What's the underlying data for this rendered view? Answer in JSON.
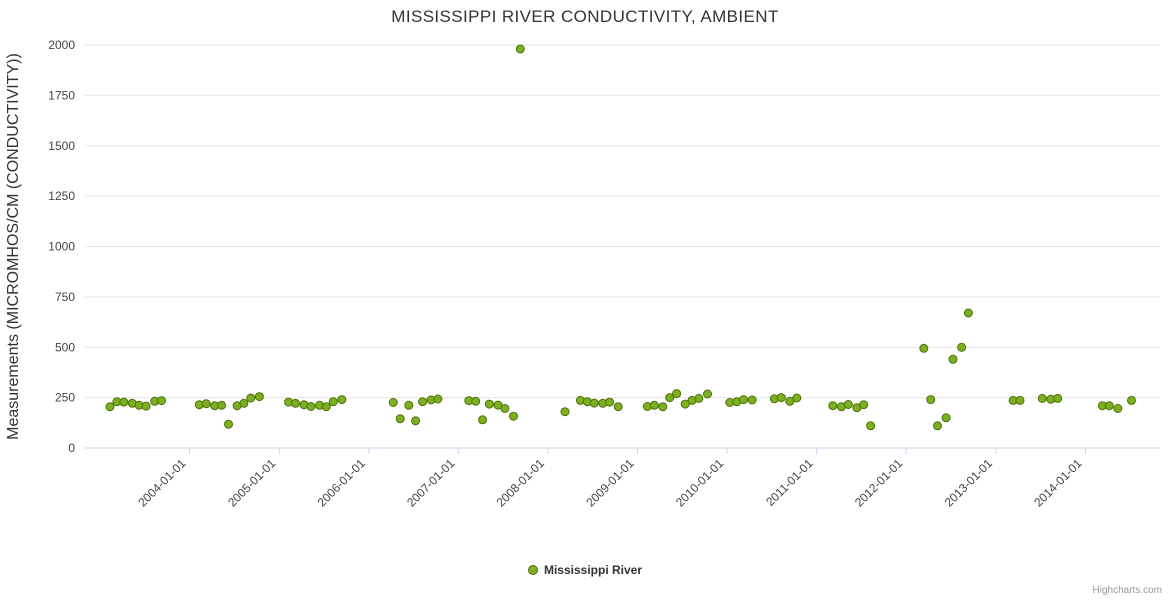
{
  "page": {
    "credits": "Highcharts.com"
  },
  "chart_data": {
    "type": "scatter",
    "title": "MISSISSIPPI RIVER CONDUCTIVITY, AMBIENT",
    "xlabel": "",
    "ylabel": "Measurements (MICROMHOS/CM (CONDUCTIVITY))",
    "ylim": [
      0,
      2000
    ],
    "yticks": [
      0,
      250,
      500,
      750,
      1000,
      1250,
      1500,
      1750,
      2000
    ],
    "xticks": [
      "2004-01-01",
      "2005-01-01",
      "2006-01-01",
      "2007-01-01",
      "2008-01-01",
      "2009-01-01",
      "2010-01-01",
      "2011-01-01",
      "2012-01-01",
      "2013-01-01",
      "2014-01-01"
    ],
    "x_range": [
      "2002-11-01",
      "2014-11-01"
    ],
    "grid": true,
    "legend": {
      "position": "bottom"
    },
    "marker_color": "#7cb020",
    "marker_stroke": "#4e7009",
    "grid_color": "#e6e6e6",
    "axis_line_color": "#ccd6eb",
    "series": [
      {
        "name": "Mississippi River",
        "points": [
          [
            "2003-02-11",
            205
          ],
          [
            "2003-03-11",
            230
          ],
          [
            "2003-04-08",
            228
          ],
          [
            "2003-05-13",
            222
          ],
          [
            "2003-06-10",
            212
          ],
          [
            "2003-07-08",
            208
          ],
          [
            "2003-08-12",
            232
          ],
          [
            "2003-09-09",
            235
          ],
          [
            "2004-02-10",
            215
          ],
          [
            "2004-03-09",
            220
          ],
          [
            "2004-04-13",
            210
          ],
          [
            "2004-05-11",
            212
          ],
          [
            "2004-06-08",
            118
          ],
          [
            "2004-07-13",
            210
          ],
          [
            "2004-08-10",
            222
          ],
          [
            "2004-09-07",
            248
          ],
          [
            "2004-10-12",
            255
          ],
          [
            "2005-02-08",
            228
          ],
          [
            "2005-03-08",
            222
          ],
          [
            "2005-04-12",
            215
          ],
          [
            "2005-05-10",
            206
          ],
          [
            "2005-06-14",
            212
          ],
          [
            "2005-07-12",
            205
          ],
          [
            "2005-08-09",
            230
          ],
          [
            "2005-09-13",
            240
          ],
          [
            "2006-04-11",
            226
          ],
          [
            "2006-05-09",
            145
          ],
          [
            "2006-06-13",
            212
          ],
          [
            "2006-07-11",
            135
          ],
          [
            "2006-08-08",
            230
          ],
          [
            "2006-09-12",
            238
          ],
          [
            "2006-10-10",
            243
          ],
          [
            "2007-02-13",
            235
          ],
          [
            "2007-03-13",
            232
          ],
          [
            "2007-04-10",
            140
          ],
          [
            "2007-05-08",
            218
          ],
          [
            "2007-06-12",
            213
          ],
          [
            "2007-07-10",
            196
          ],
          [
            "2007-08-14",
            158
          ],
          [
            "2007-09-11",
            1980
          ],
          [
            "2008-03-11",
            180
          ],
          [
            "2008-05-13",
            236
          ],
          [
            "2008-06-10",
            230
          ],
          [
            "2008-07-08",
            223
          ],
          [
            "2008-08-12",
            222
          ],
          [
            "2008-09-09",
            228
          ],
          [
            "2008-10-14",
            205
          ],
          [
            "2009-02-10",
            206
          ],
          [
            "2009-03-10",
            212
          ],
          [
            "2009-04-14",
            205
          ],
          [
            "2009-05-12",
            250
          ],
          [
            "2009-06-09",
            270
          ],
          [
            "2009-07-14",
            218
          ],
          [
            "2009-08-11",
            236
          ],
          [
            "2009-09-08",
            246
          ],
          [
            "2009-10-13",
            268
          ],
          [
            "2010-01-12",
            226
          ],
          [
            "2010-02-09",
            230
          ],
          [
            "2010-03-09",
            240
          ],
          [
            "2010-04-13",
            238
          ],
          [
            "2010-07-13",
            244
          ],
          [
            "2010-08-10",
            250
          ],
          [
            "2010-09-14",
            232
          ],
          [
            "2010-10-12",
            248
          ],
          [
            "2011-03-08",
            210
          ],
          [
            "2011-04-12",
            205
          ],
          [
            "2011-05-10",
            216
          ],
          [
            "2011-06-14",
            200
          ],
          [
            "2011-07-12",
            215
          ],
          [
            "2011-08-09",
            110
          ],
          [
            "2012-03-13",
            495
          ],
          [
            "2012-04-10",
            240
          ],
          [
            "2012-05-08",
            110
          ],
          [
            "2012-06-12",
            150
          ],
          [
            "2012-07-10",
            440
          ],
          [
            "2012-08-14",
            500
          ],
          [
            "2012-09-11",
            670
          ],
          [
            "2013-03-12",
            236
          ],
          [
            "2013-04-09",
            236
          ],
          [
            "2013-07-09",
            246
          ],
          [
            "2013-08-13",
            242
          ],
          [
            "2013-09-10",
            246
          ],
          [
            "2014-03-11",
            210
          ],
          [
            "2014-04-08",
            210
          ],
          [
            "2014-05-13",
            196
          ],
          [
            "2014-07-08",
            236
          ]
        ]
      }
    ]
  }
}
